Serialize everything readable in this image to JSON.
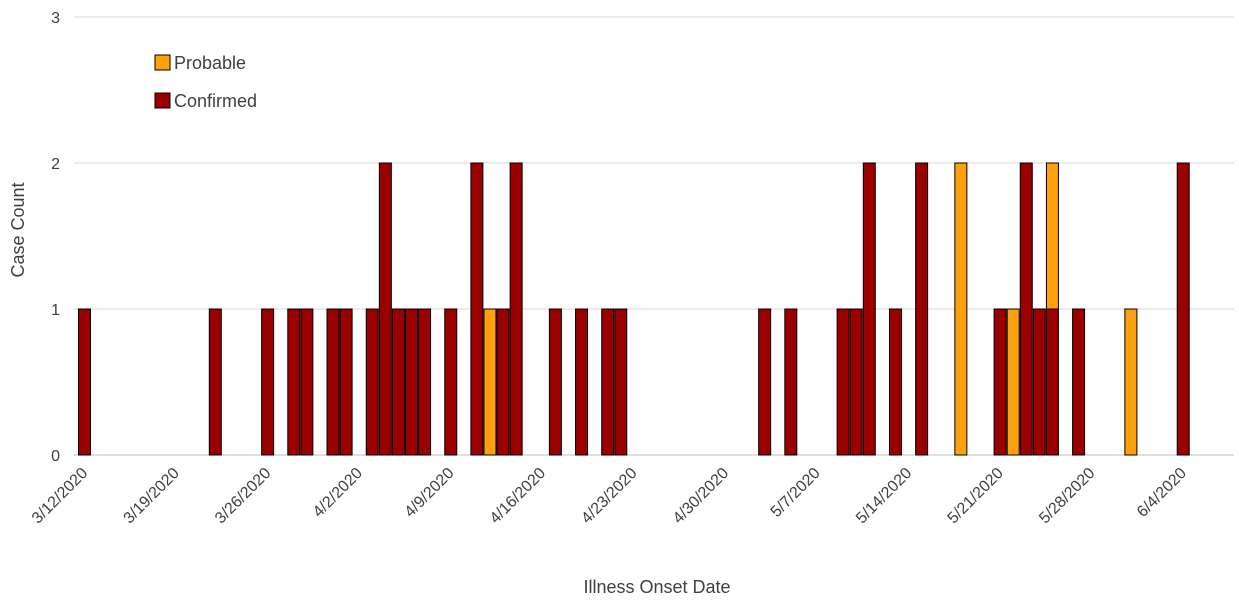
{
  "chart_data": {
    "type": "bar",
    "stacked": true,
    "title": "",
    "xlabel": "Illness Onset Date",
    "ylabel": "Case Count",
    "ylim": [
      0,
      3
    ],
    "y_ticks": [
      "0",
      "1",
      "2",
      "3"
    ],
    "grid": "horizontal",
    "legend_position": "top-left",
    "x_tick_labels": [
      "3/12/2020",
      "3/19/2020",
      "3/26/2020",
      "4/2/2020",
      "4/9/2020",
      "4/16/2020",
      "4/23/2020",
      "4/30/2020",
      "5/7/2020",
      "5/14/2020",
      "5/21/2020",
      "5/28/2020",
      "6/4/2020"
    ],
    "x_range": [
      "3/12/2020",
      "6/8/2020"
    ],
    "series": [
      {
        "name": "Confirmed",
        "color": "#9b0000",
        "points": [
          {
            "date": "3/12/2020",
            "value": 1
          },
          {
            "date": "3/22/2020",
            "value": 1
          },
          {
            "date": "3/26/2020",
            "value": 1
          },
          {
            "date": "3/28/2020",
            "value": 1
          },
          {
            "date": "3/29/2020",
            "value": 1
          },
          {
            "date": "3/31/2020",
            "value": 1
          },
          {
            "date": "4/1/2020",
            "value": 1
          },
          {
            "date": "4/3/2020",
            "value": 1
          },
          {
            "date": "4/4/2020",
            "value": 2
          },
          {
            "date": "4/5/2020",
            "value": 1
          },
          {
            "date": "4/6/2020",
            "value": 1
          },
          {
            "date": "4/7/2020",
            "value": 1
          },
          {
            "date": "4/9/2020",
            "value": 1
          },
          {
            "date": "4/11/2020",
            "value": 2
          },
          {
            "date": "4/13/2020",
            "value": 1
          },
          {
            "date": "4/14/2020",
            "value": 2
          },
          {
            "date": "4/17/2020",
            "value": 1
          },
          {
            "date": "4/19/2020",
            "value": 1
          },
          {
            "date": "4/21/2020",
            "value": 1
          },
          {
            "date": "4/22/2020",
            "value": 1
          },
          {
            "date": "5/3/2020",
            "value": 1
          },
          {
            "date": "5/5/2020",
            "value": 1
          },
          {
            "date": "5/9/2020",
            "value": 1
          },
          {
            "date": "5/10/2020",
            "value": 1
          },
          {
            "date": "5/11/2020",
            "value": 2
          },
          {
            "date": "5/13/2020",
            "value": 1
          },
          {
            "date": "5/15/2020",
            "value": 2
          },
          {
            "date": "5/21/2020",
            "value": 1
          },
          {
            "date": "5/23/2020",
            "value": 2
          },
          {
            "date": "5/24/2020",
            "value": 1
          },
          {
            "date": "5/25/2020",
            "value": 1
          },
          {
            "date": "5/27/2020",
            "value": 1
          },
          {
            "date": "6/4/2020",
            "value": 2
          }
        ]
      },
      {
        "name": "Probable",
        "color": "#ffa00f",
        "points": [
          {
            "date": "4/12/2020",
            "value": 1
          },
          {
            "date": "5/18/2020",
            "value": 2
          },
          {
            "date": "5/22/2020",
            "value": 1
          },
          {
            "date": "5/25/2020",
            "value": 1
          },
          {
            "date": "5/31/2020",
            "value": 1
          }
        ]
      }
    ],
    "legend": [
      {
        "name": "Probable",
        "color": "#ffa00f"
      },
      {
        "name": "Confirmed",
        "color": "#9b0000"
      }
    ]
  }
}
